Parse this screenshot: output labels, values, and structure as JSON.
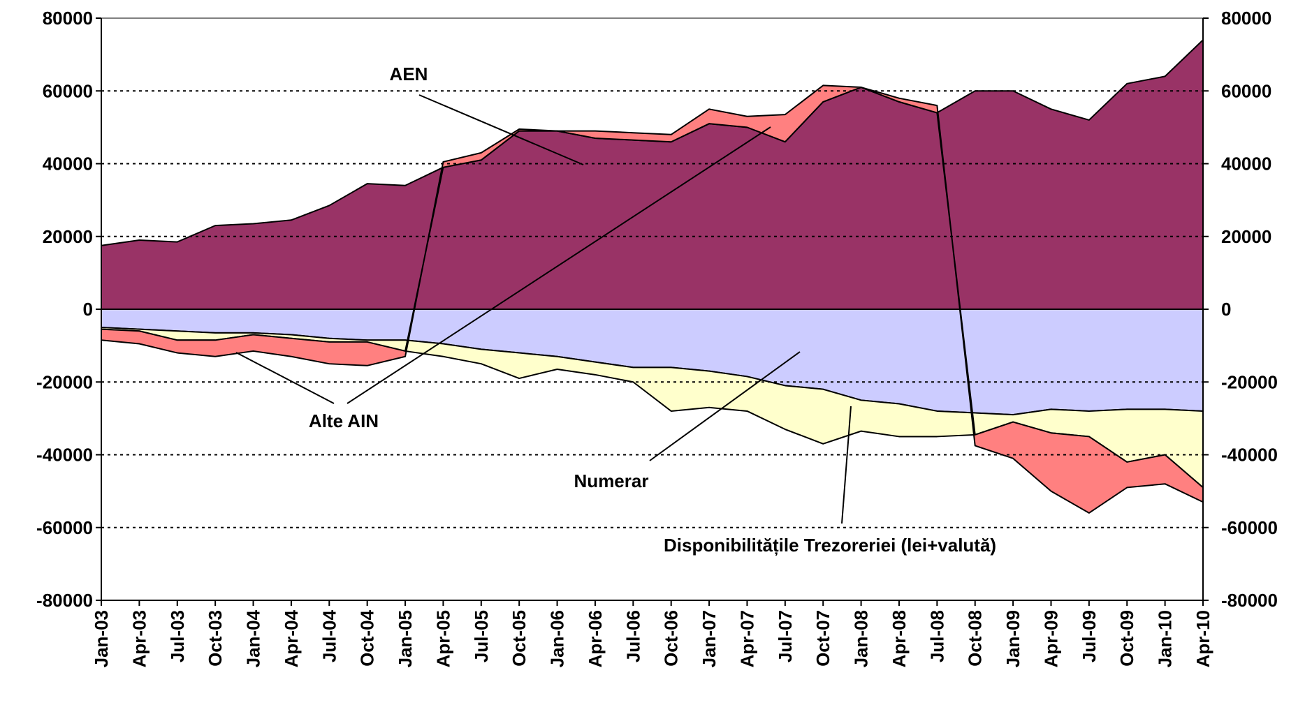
{
  "chart_data": {
    "type": "area",
    "categories": [
      "Jan-03",
      "Apr-03",
      "Jul-03",
      "Oct-03",
      "Jan-04",
      "Apr-04",
      "Jul-04",
      "Oct-04",
      "Jan-05",
      "Apr-05",
      "Jul-05",
      "Oct-05",
      "Jan-06",
      "Apr-06",
      "Jul-06",
      "Oct-06",
      "Jan-07",
      "Apr-07",
      "Jul-07",
      "Oct-07",
      "Jan-08",
      "Apr-08",
      "Jul-08",
      "Oct-08",
      "Jan-09",
      "Apr-09",
      "Jul-09",
      "Oct-09",
      "Jan-10",
      "Apr-10"
    ],
    "series": [
      {
        "name": "AEN",
        "color": "#993366",
        "values": [
          17500,
          19000,
          18500,
          23000,
          23500,
          24500,
          28500,
          34500,
          34000,
          39000,
          41000,
          49000,
          49000,
          47000,
          46500,
          46000,
          51000,
          50000,
          46000,
          57000,
          61000,
          57000,
          54000,
          60000,
          60000,
          55000,
          52000,
          62000,
          64000,
          74000
        ]
      },
      {
        "name": "Numerar",
        "color": "#ccccff",
        "values": [
          -5000,
          -5500,
          -6000,
          -6500,
          -6500,
          -7000,
          -8000,
          -8500,
          -8500,
          -9500,
          -11000,
          -12000,
          -13000,
          -14500,
          -16000,
          -16000,
          -17000,
          -18500,
          -21000,
          -22000,
          -25000,
          -26000,
          -28000,
          -28500,
          -29000,
          -27500,
          -28000,
          -27500,
          -27500,
          -28000
        ]
      },
      {
        "name": "Disponibilitățile Trezoreriei (lei+valută)",
        "color": "#ffffcc",
        "values": [
          -500,
          -500,
          -2500,
          -2000,
          -500,
          -1000,
          -1000,
          -500,
          -3000,
          -3500,
          -4000,
          -7000,
          -3500,
          -3500,
          -4000,
          -12000,
          -10000,
          -9500,
          -12000,
          -15000,
          -8500,
          -9000,
          -7000,
          -6000,
          -2000,
          -6500,
          -7000,
          -14500,
          -12500,
          -21000
        ]
      },
      {
        "name": "Alte AIN",
        "color": "#ff8080",
        "values": [
          -3000,
          -3500,
          -3500,
          -4500,
          -4500,
          -5000,
          -6000,
          -6500,
          -1500,
          1500,
          2000,
          500,
          0,
          2000,
          2000,
          2000,
          4000,
          3000,
          7500,
          4500,
          0,
          1000,
          2000,
          -3000,
          -10000,
          -16000,
          -21000,
          -7000,
          -8000,
          -4000
        ]
      }
    ],
    "ylim": [
      -80000,
      80000
    ],
    "yticks": [
      -80000,
      -60000,
      -40000,
      -20000,
      0,
      20000,
      40000,
      60000,
      80000
    ],
    "y2lim": [
      -80000,
      80000
    ],
    "y2ticks": [
      -80000,
      -60000,
      -40000,
      -20000,
      0,
      20000,
      40000,
      60000,
      80000
    ],
    "grid": true
  }
}
